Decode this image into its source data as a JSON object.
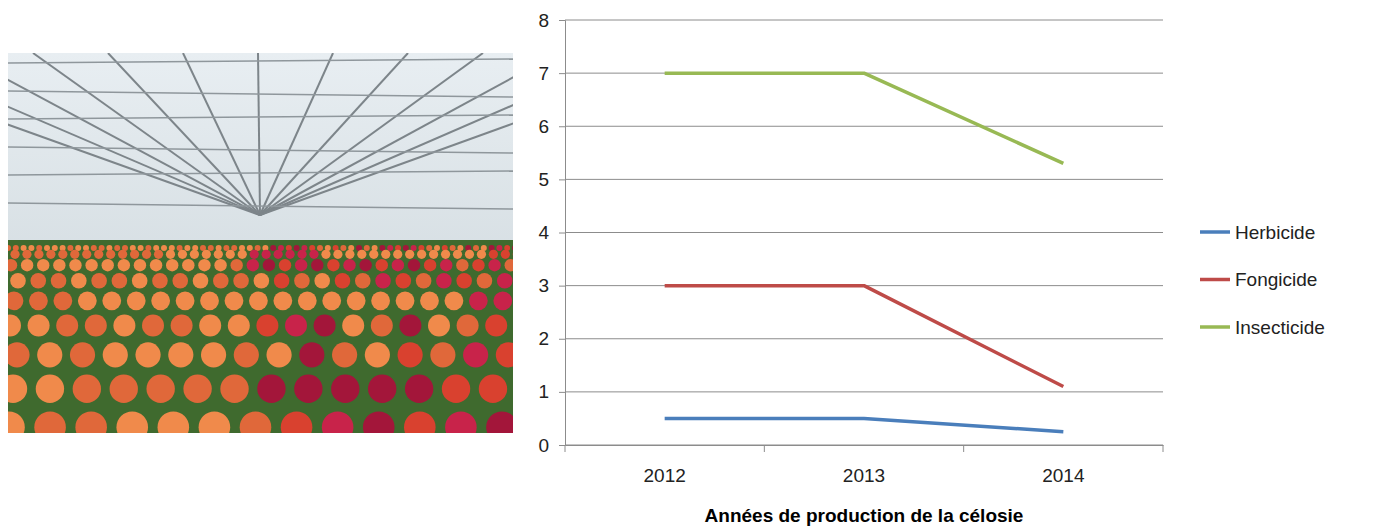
{
  "chart_data": {
    "type": "line",
    "xlabel": "Années de production de la célosie",
    "categories": [
      "2012",
      "2013",
      "2014"
    ],
    "series": [
      {
        "name": "Herbicide",
        "color": "#4a7ebb",
        "values": [
          0.5,
          0.5,
          0.25
        ]
      },
      {
        "name": "Fongicide",
        "color": "#be4b48",
        "values": [
          3,
          3,
          1.1
        ]
      },
      {
        "name": "Insecticide",
        "color": "#98b954",
        "values": [
          7,
          7,
          5.3
        ]
      }
    ],
    "ylim": [
      0,
      8
    ],
    "yticks": [
      0,
      1,
      2,
      3,
      4,
      5,
      6,
      7,
      8
    ],
    "grid": true,
    "legend": "right"
  }
}
